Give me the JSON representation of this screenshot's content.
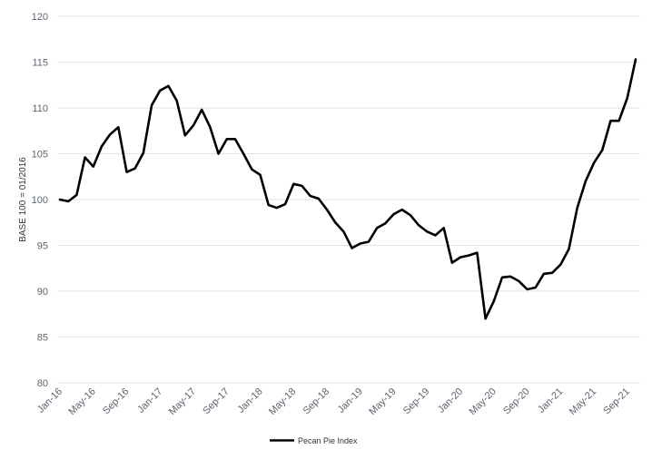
{
  "chart_data": {
    "type": "line",
    "title": "",
    "xlabel": "",
    "ylabel": "BASE 100 = 01/2016",
    "ylim": [
      80,
      120
    ],
    "yticks": [
      80,
      85,
      90,
      95,
      100,
      105,
      110,
      115,
      120
    ],
    "grid": "horizontal",
    "legend": "bottom-center",
    "x_tick_labels": [
      "Jan-16",
      "May-16",
      "Sep-16",
      "Jan-17",
      "May-17",
      "Sep-17",
      "Jan-18",
      "May-18",
      "Sep-18",
      "Jan-19",
      "May-19",
      "Sep-19",
      "Jan-20",
      "May-20",
      "Sep-20",
      "Jan-21",
      "May-21",
      "Sep-21"
    ],
    "x": [
      "Jan-16",
      "Feb-16",
      "Mar-16",
      "Apr-16",
      "May-16",
      "Jun-16",
      "Jul-16",
      "Aug-16",
      "Sep-16",
      "Oct-16",
      "Nov-16",
      "Dec-16",
      "Jan-17",
      "Feb-17",
      "Mar-17",
      "Apr-17",
      "May-17",
      "Jun-17",
      "Jul-17",
      "Aug-17",
      "Sep-17",
      "Oct-17",
      "Nov-17",
      "Dec-17",
      "Jan-18",
      "Feb-18",
      "Mar-18",
      "Apr-18",
      "May-18",
      "Jun-18",
      "Jul-18",
      "Aug-18",
      "Sep-18",
      "Oct-18",
      "Nov-18",
      "Dec-18",
      "Jan-19",
      "Feb-19",
      "Mar-19",
      "Apr-19",
      "May-19",
      "Jun-19",
      "Jul-19",
      "Aug-19",
      "Sep-19",
      "Oct-19",
      "Nov-19",
      "Dec-19",
      "Jan-20",
      "Feb-20",
      "Mar-20",
      "Apr-20",
      "May-20",
      "Jun-20",
      "Jul-20",
      "Aug-20",
      "Sep-20",
      "Oct-20",
      "Nov-20",
      "Dec-20",
      "Jan-21",
      "Feb-21",
      "Mar-21",
      "Apr-21",
      "May-21",
      "Jun-21",
      "Jul-21",
      "Aug-21",
      "Sep-21",
      "Oct-21"
    ],
    "series": [
      {
        "name": "Pecan Pie Index",
        "color": "#000000",
        "values": [
          100.0,
          99.8,
          100.5,
          104.6,
          103.6,
          105.8,
          107.1,
          107.9,
          103.0,
          103.4,
          105.1,
          110.3,
          111.9,
          112.4,
          110.8,
          107.0,
          108.1,
          109.8,
          107.9,
          105.0,
          106.6,
          106.6,
          105.0,
          103.3,
          102.7,
          99.4,
          99.1,
          99.5,
          101.7,
          101.5,
          100.4,
          100.1,
          98.9,
          97.5,
          96.5,
          94.7,
          95.2,
          95.4,
          96.9,
          97.4,
          98.4,
          98.9,
          98.3,
          97.2,
          96.5,
          96.1,
          96.9,
          93.1,
          93.7,
          93.9,
          94.2,
          87.0,
          88.9,
          91.5,
          91.6,
          91.1,
          90.2,
          90.4,
          91.9,
          92.0,
          92.9,
          94.6,
          99.1,
          102.0,
          104.0,
          105.4,
          108.6,
          108.6,
          111.1,
          115.3
        ]
      }
    ]
  }
}
